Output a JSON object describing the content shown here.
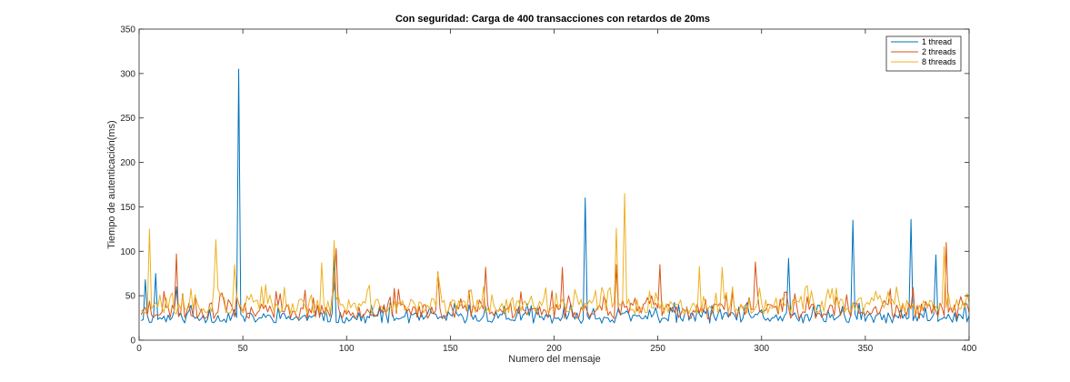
{
  "chart_data": {
    "type": "line",
    "title": "Con seguridad: Carga de 400 transacciones con retardos de 20ms",
    "xlabel": "Numero del mensaje",
    "ylabel": "Tiempo de autenticación(ms)",
    "xlim": [
      0,
      400
    ],
    "ylim": [
      0,
      350
    ],
    "xticks": [
      0,
      50,
      100,
      150,
      200,
      250,
      300,
      350,
      400
    ],
    "yticks": [
      0,
      50,
      100,
      150,
      200,
      250,
      300,
      350
    ],
    "xtick_labels": [
      "0",
      "50",
      "100",
      "150",
      "200",
      "250",
      "300",
      "350",
      "400"
    ],
    "ytick_labels": [
      "0",
      "50",
      "100",
      "150",
      "200",
      "250",
      "300",
      "350"
    ],
    "grid": false,
    "legend_position": "top-right",
    "series": [
      {
        "name": "1 thread",
        "color": "#0072bd",
        "base": 25,
        "noise": 12,
        "seed": 11,
        "x": [
          1,
          400
        ],
        "spikes": [
          [
            3,
            68
          ],
          [
            8,
            75
          ],
          [
            18,
            60
          ],
          [
            48,
            305
          ],
          [
            94,
            95
          ],
          [
            215,
            160
          ],
          [
            313,
            92
          ],
          [
            344,
            135
          ],
          [
            372,
            136
          ],
          [
            384,
            96
          ],
          [
            398,
            42
          ]
        ]
      },
      {
        "name": "2 threads",
        "color": "#d95319",
        "base": 33,
        "noise": 18,
        "seed": 23,
        "x": [
          1,
          400
        ],
        "spikes": [
          [
            18,
            97
          ],
          [
            95,
            103
          ],
          [
            144,
            77
          ],
          [
            167,
            82
          ],
          [
            204,
            82
          ],
          [
            230,
            85
          ],
          [
            251,
            85
          ],
          [
            297,
            88
          ],
          [
            389,
            110
          ]
        ]
      },
      {
        "name": "8 threads",
        "color": "#edb120",
        "base": 38,
        "noise": 17,
        "seed": 37,
        "x": [
          1,
          400
        ],
        "spikes": [
          [
            5,
            125
          ],
          [
            37,
            113
          ],
          [
            46,
            85
          ],
          [
            88,
            87
          ],
          [
            94,
            112
          ],
          [
            144,
            76
          ],
          [
            230,
            126
          ],
          [
            234,
            165
          ],
          [
            270,
            83
          ],
          [
            281,
            82
          ],
          [
            388,
            105
          ]
        ]
      }
    ]
  }
}
